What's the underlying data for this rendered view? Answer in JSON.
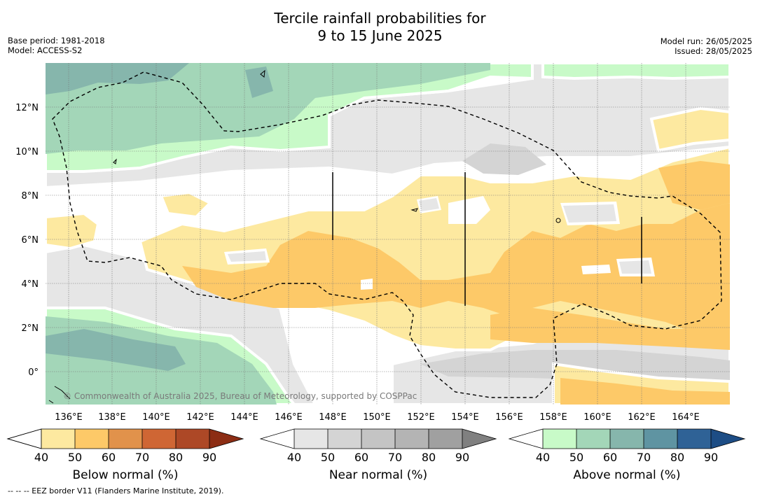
{
  "title": {
    "line1": "Tercile rainfall probabilities for",
    "line2": "9 to 15 June 2025"
  },
  "meta_left": {
    "base_period": "Base period: 1981-2018",
    "model": "Model: ACCESS-S2"
  },
  "meta_right": {
    "model_run": "Model run: 26/05/2025",
    "issued": "Issued: 28/05/2025"
  },
  "map": {
    "lon_labels": [
      "136°E",
      "138°E",
      "140°E",
      "142°E",
      "144°E",
      "146°E",
      "148°E",
      "150°E",
      "152°E",
      "154°E",
      "156°E",
      "158°E",
      "160°E",
      "162°E",
      "164°E"
    ],
    "lat_labels": [
      "12°N",
      "10°N",
      "8°N",
      "6°N",
      "4°N",
      "2°N",
      "0°"
    ],
    "copyright": "© Commonwealth of Australia 2025, Bureau of Meteorology, supported by COSPPac",
    "extent": {
      "lon_min": 135,
      "lon_max": 166,
      "lat_min": -1.5,
      "lat_max": 14
    },
    "colors": {
      "below": [
        "#fde9a0",
        "#fdc968",
        "#e1924b",
        "#cf6634",
        "#ad4826",
        "#8c2d14"
      ],
      "near": [
        "#e6e6e6",
        "#d4d4d4",
        "#c4c4c4",
        "#b4b4b4",
        "#a0a0a0",
        "#808080"
      ],
      "above": [
        "#c8fac8",
        "#a3d6b8",
        "#86b6ac",
        "#5f94a2",
        "#2f6296",
        "#1d4d85"
      ]
    }
  },
  "colorbars": [
    {
      "title": "Below normal (%)",
      "ticks": [
        "40",
        "50",
        "60",
        "70",
        "80",
        "90"
      ]
    },
    {
      "title": "Near normal (%)",
      "ticks": [
        "40",
        "50",
        "60",
        "70",
        "80",
        "90"
      ]
    },
    {
      "title": "Above normal (%)",
      "ticks": [
        "40",
        "50",
        "60",
        "70",
        "80",
        "90"
      ]
    }
  ],
  "footnote": "--  --  -- EEZ border V11 (Flanders Marine Institute, 2019)."
}
